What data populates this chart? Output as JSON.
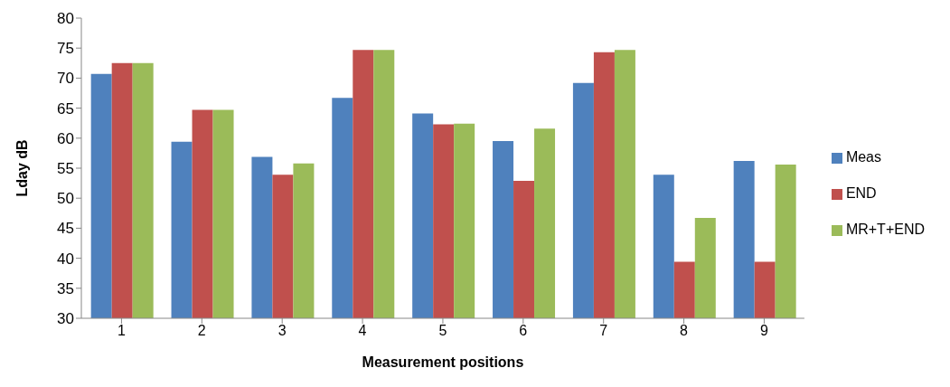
{
  "chart_data": {
    "type": "bar",
    "xlabel": "Measurement positions",
    "ylabel": "Lday dB",
    "categories": [
      "1",
      "2",
      "3",
      "4",
      "5",
      "6",
      "7",
      "8",
      "9"
    ],
    "series": [
      {
        "name": "Meas",
        "color": "#4f81bd",
        "values": [
          70.7,
          59.4,
          56.9,
          66.7,
          64.1,
          59.5,
          69.2,
          53.9,
          56.2
        ]
      },
      {
        "name": "END",
        "color": "#c0504d",
        "values": [
          72.5,
          64.7,
          53.9,
          74.7,
          62.3,
          52.9,
          74.3,
          39.4,
          39.4
        ]
      },
      {
        "name": "MR+T+END",
        "color": "#9bbb59",
        "values": [
          72.5,
          64.7,
          55.8,
          74.7,
          62.4,
          61.6,
          74.7,
          46.7,
          55.6
        ]
      }
    ],
    "ylim": [
      30,
      80
    ],
    "yticks": [
      30,
      35,
      40,
      45,
      50,
      55,
      60,
      65,
      70,
      75,
      80
    ],
    "grid": false,
    "legend": "right"
  }
}
